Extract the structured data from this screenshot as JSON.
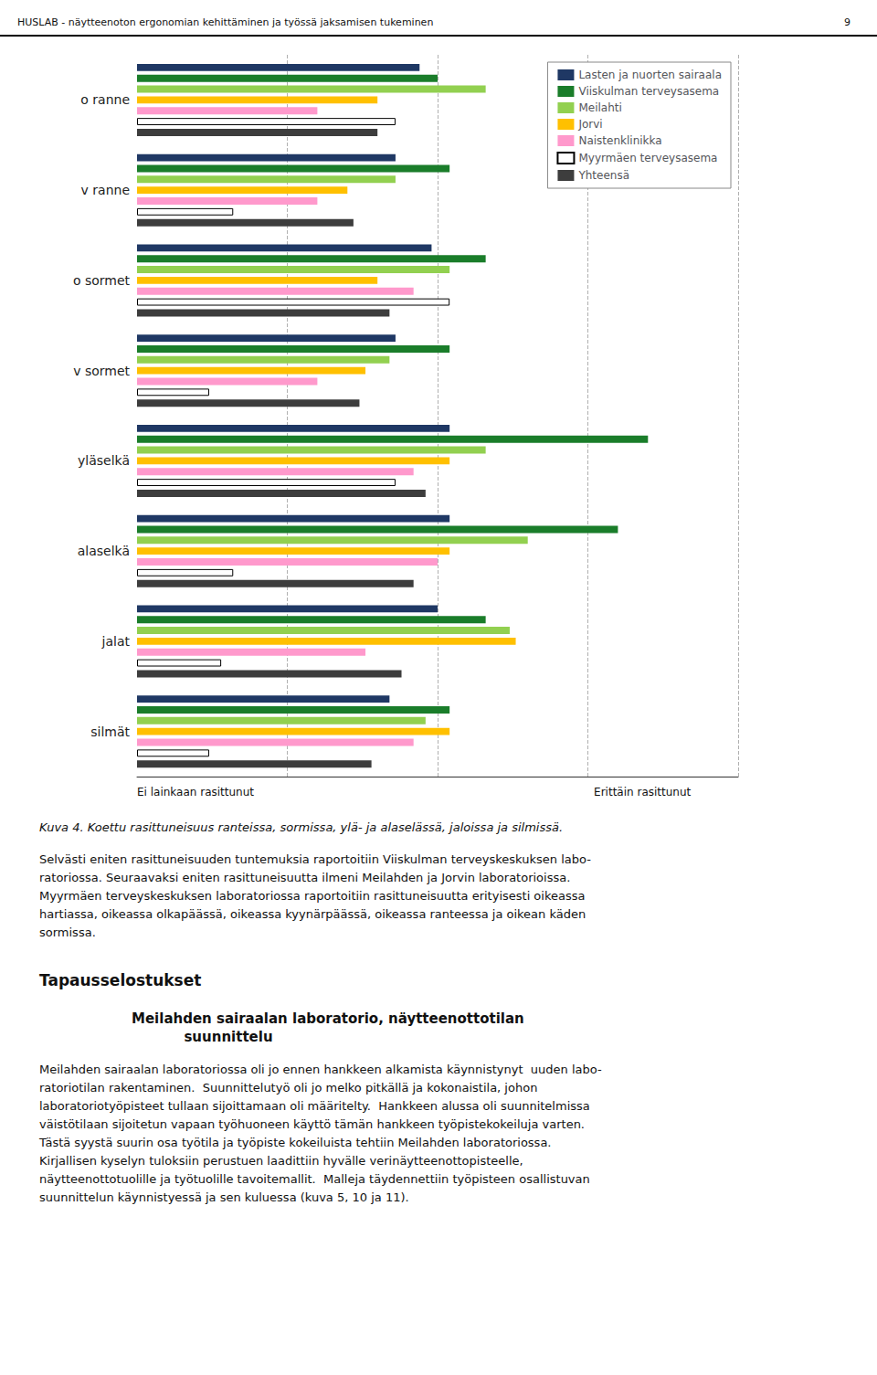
{
  "chart_data": {
    "type": "bar",
    "orientation": "horizontal",
    "categories": [
      "o ranne",
      "v ranne",
      "o sormet",
      "v sormet",
      "yläselkä",
      "alaselkä",
      "jalat",
      "silmät"
    ],
    "series": [
      {
        "name": "Lasten ja nuorten sairaala",
        "color": "#1F3864",
        "values": [
          47,
          43,
          49,
          43,
          52,
          52,
          50,
          42
        ]
      },
      {
        "name": "Viiskulman terveysasema",
        "color": "#1a7d2a",
        "values": [
          50,
          52,
          58,
          52,
          85,
          80,
          58,
          52
        ]
      },
      {
        "name": "Meilahti",
        "color": "#92d050",
        "values": [
          58,
          43,
          52,
          42,
          58,
          65,
          62,
          48
        ]
      },
      {
        "name": "Jorvi",
        "color": "#ffc000",
        "values": [
          40,
          35,
          40,
          38,
          52,
          52,
          63,
          52
        ]
      },
      {
        "name": "Naistenklinikka",
        "color": "#ff99cc",
        "values": [
          30,
          30,
          46,
          30,
          46,
          50,
          38,
          46
        ]
      },
      {
        "name": "Myyrmäen terveysasema",
        "color": "#ffffff",
        "values": [
          43,
          16,
          52,
          12,
          43,
          16,
          14,
          12
        ]
      },
      {
        "name": "Yhteensä",
        "color": "#3d3d3d",
        "values": [
          40,
          36,
          42,
          37,
          48,
          46,
          44,
          39
        ]
      }
    ],
    "xlabel": [
      "Ei lainkaan rasittunut",
      "Erittäin rasittunut"
    ],
    "xlim": [
      0,
      100
    ],
    "xticks": [
      25,
      50,
      75,
      100
    ],
    "grid": true,
    "legend": "upper right",
    "tick_labels": "y",
    "annotations": [
      "HUSLAB - näytteenoton ergonomian kehittäminen ja työssä jaksamisen tukeminen",
      "9",
      "Kuva 4. Koettu rasittuneisuus ranteissa, sormissa, ylä- ja alaselässä, jaloissa ja silmissä.",
      "Selvästi eniten rasittuneisuuden tuntemuksia raportoitiin Viiskulman terveyskeskuksen labo-\nratoriossa. Seuraavaksi eniten rasittuneisuutta ilmeni Meilahden ja Jorvin laboratorioissa.\nMyyrmäen terveyskeskuksen laboratoriossa raportoitiin rasittuneisuutta erityisesti oikeassa\nhartiassa, oikeassa olkapäässä, oikeassa kyynärpäässä, oikeassa ranteessa ja oikean käden\nsormissa.",
      "Tapausselostukset",
      "Meilahden sairaalan laboratorio, näytteenottotilan\n           suunnittelu",
      "Meilahden sairaalan laboratoriossa oli jo ennen hankkeen alkamista käynnistynyt  uuden labo-\nratoriotilan rakentaminen.  Suunnittelutyö oli jo melko pitkällä ja kokonaistila, johon\nlaboratoriotyöpisteet tullaan sijoittamaan oli määritelty.  Hankkeen alussa oli suunnitelmissa\nväistötilaan sijoitetun vapaan työhuoneen käyttö tämän hankkeen työpistekokeiluja varten.\nTästä syystä suurin osa työtila ja työpiste kokeiluista tehtiin Meilahden laboratoriossa.\nKirjallisen kyselyn tuloksiin perustuen laadittiin hyvälle verinäytteenottopisteelle,\nnäytteenottotuolille ja työtuolille tavoitemallit.  Malleja täydennettiin työpisteen osallistuvan\nsuunnittelun käynnistyessä ja sen kuluessa (kuva 5, 10 ja 11)."
    ]
  }
}
